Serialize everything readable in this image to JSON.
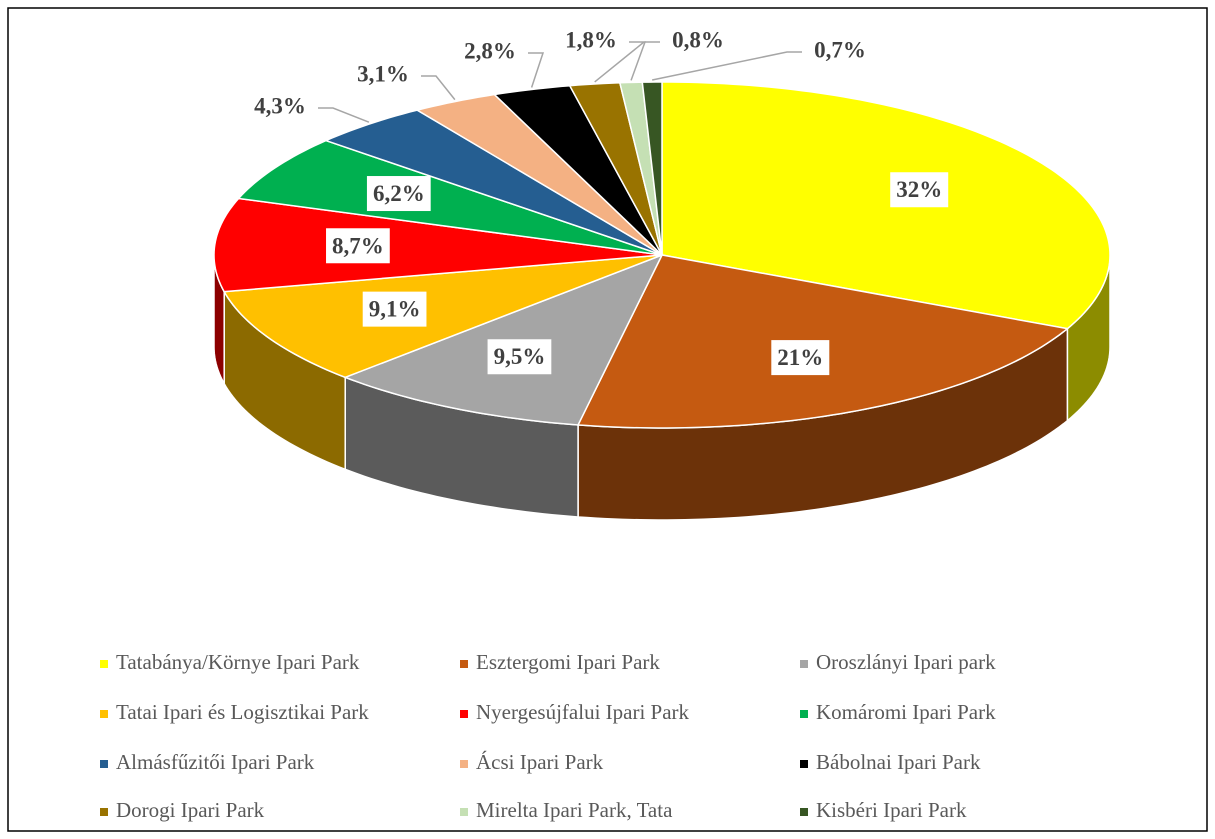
{
  "chart_data": {
    "type": "pie",
    "categories": [
      "Tatabánya/Környe Ipari Park",
      "Esztergomi Ipari Park",
      "Oroszlányi Ipari park",
      "Tatai Ipari és Logisztikai Park",
      "Nyergesújfalui Ipari Park",
      "Komáromi Ipari Park",
      "Almásfűzitői Ipari Park",
      "Ácsi Ipari Park",
      "Bábolnai Ipari Park",
      "Dorogi Ipari Park",
      "Mirelta Ipari Park, Tata",
      "Kisbéri Ipari Park"
    ],
    "values": [
      32,
      21,
      9.5,
      9.1,
      8.7,
      6.2,
      4.3,
      3.1,
      2.8,
      1.8,
      0.8,
      0.7
    ],
    "value_labels": [
      "32%",
      "21%",
      "9,5%",
      "9,1%",
      "8,7%",
      "6,2%",
      "4,3%",
      "3,1%",
      "2,8%",
      "1,8%",
      "0,8%",
      "0,7%"
    ],
    "colors": [
      "#ffff00",
      "#c55a11",
      "#a5a5a5",
      "#ffc000",
      "#ff0000",
      "#00b050",
      "#255e91",
      "#f4b183",
      "#000000",
      "#997300",
      "#c5e0b4",
      "#375623"
    ],
    "legend": "bottom"
  }
}
